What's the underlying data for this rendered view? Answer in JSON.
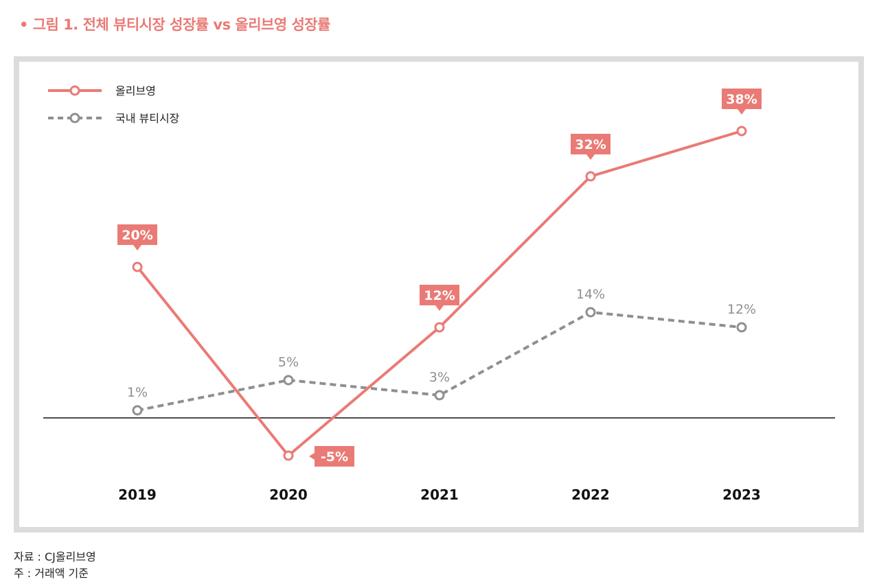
{
  "title": "• 그림 1. 전체 뷰티시장 성장률 vs 올리브영 성장률",
  "colors": {
    "oliveyoung": "#ea7a75",
    "market": "#8f8f8f",
    "frame": "#dcdcdc"
  },
  "chart_data": {
    "type": "line",
    "categories": [
      "2019",
      "2020",
      "2021",
      "2022",
      "2023"
    ],
    "ylim": [
      -10,
      45
    ],
    "grid": false,
    "legend": "top-left",
    "series": [
      {
        "name": "올리브영",
        "values": [
          20,
          -5,
          12,
          32,
          38
        ],
        "labels": [
          "20%",
          "-5%",
          "12%",
          "32%",
          "38%"
        ],
        "style": "solid"
      },
      {
        "name": "국내 뷰티시장",
        "values": [
          1,
          5,
          3,
          14,
          12
        ],
        "labels": [
          "1%",
          "5%",
          "3%",
          "14%",
          "12%"
        ],
        "style": "dashed"
      }
    ]
  },
  "footnotes": {
    "source": "자료 : CJ올리브영",
    "note": "주 : 거래액 기준"
  }
}
